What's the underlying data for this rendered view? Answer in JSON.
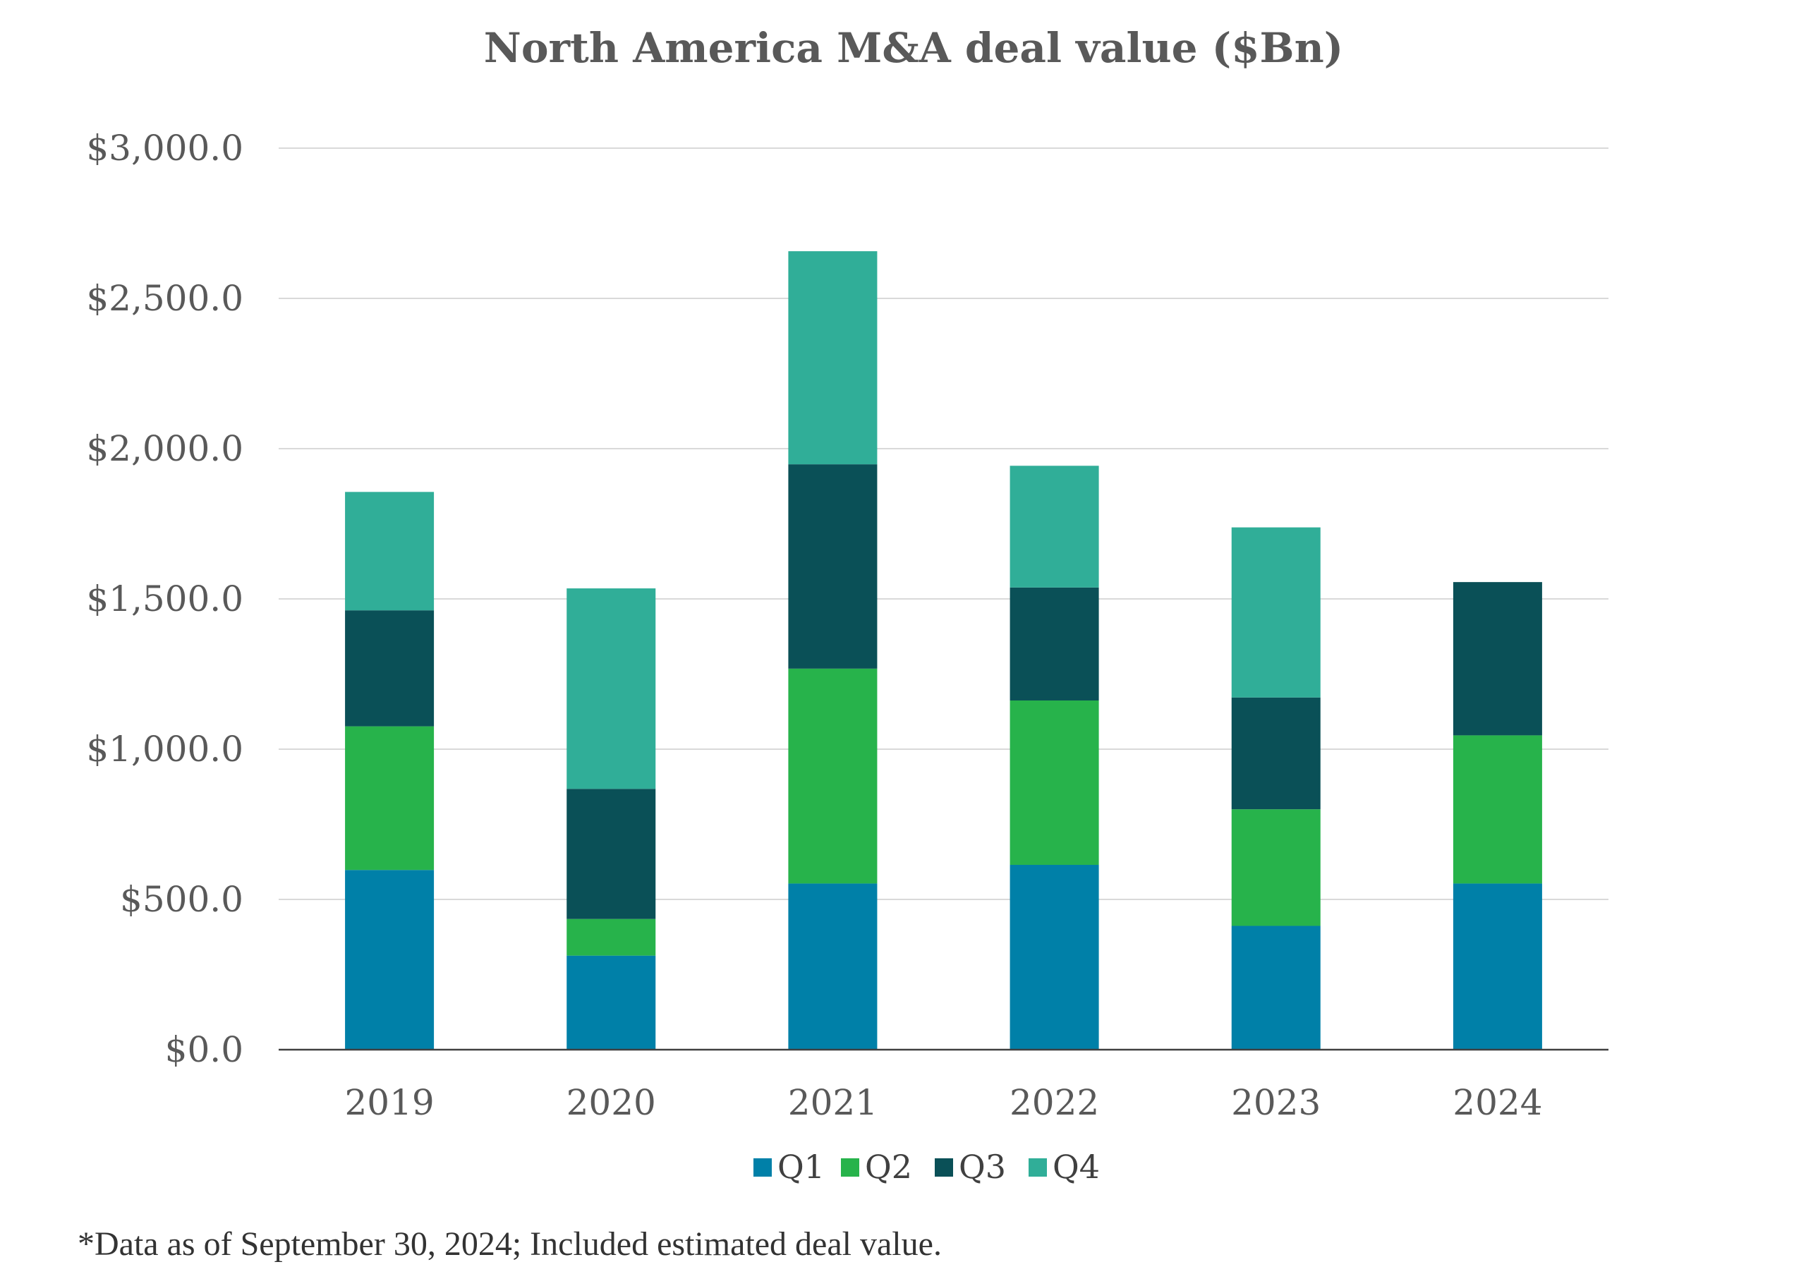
{
  "chart_data": {
    "type": "bar",
    "stacked": true,
    "title": "North America M&A deal value ($Bn)",
    "xlabel": "",
    "ylabel": "",
    "categories": [
      "2019",
      "2020",
      "2021",
      "2022",
      "2023",
      "2024"
    ],
    "series": [
      {
        "name": "Q1",
        "color": "#0080a8",
        "values": [
          598,
          313,
          553,
          615,
          412,
          553
        ]
      },
      {
        "name": "Q2",
        "color": "#27b34b",
        "values": [
          478,
          122,
          715,
          547,
          388,
          493
        ]
      },
      {
        "name": "Q3",
        "color": "#0a5057",
        "values": [
          386,
          433,
          680,
          376,
          372,
          510
        ]
      },
      {
        "name": "Q4",
        "color": "#30ae98",
        "values": [
          394,
          667,
          709,
          405,
          566,
          0
        ]
      }
    ],
    "ylim": [
      0,
      3000
    ],
    "yticks": [
      0,
      500,
      1000,
      1500,
      2000,
      2500,
      3000
    ],
    "ytick_labels": [
      "$0.0",
      "$500.0",
      "$1,000.0",
      "$1,500.0",
      "$2,000.0",
      "$2,500.0",
      "$3,000.0"
    ],
    "grid": true,
    "legend_position": "bottom"
  },
  "footnote": "*Data as of September 30, 2024; Included estimated deal value."
}
